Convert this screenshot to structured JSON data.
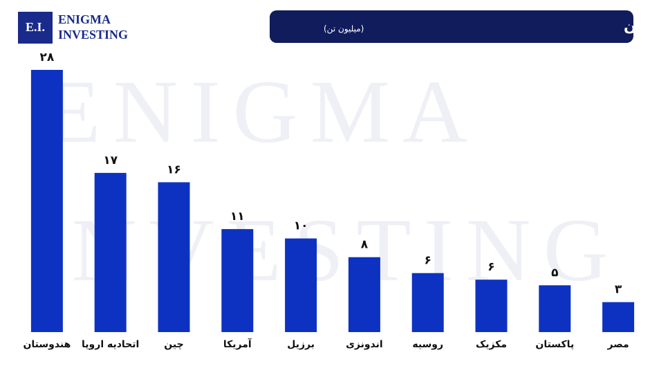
{
  "chart_data": {
    "type": "bar",
    "title": "بزرگ‌ترین مصرف‌کنندگان شکر در جهان",
    "subtitle": "(میلیون تن)",
    "logo": {
      "mark": "E.I.",
      "name_1": "Enigma",
      "name_2": "Investing"
    },
    "watermark": [
      "ENIGMA",
      "INVESTING"
    ],
    "categories": [
      "هندوستان",
      "اتحادیه اروپا",
      "چین",
      "آمریکا",
      "برزیل",
      "اندونزی",
      "روسیه",
      "مکزیک",
      "پاکستان",
      "مصر"
    ],
    "values": [
      28,
      17,
      16,
      11,
      10,
      8,
      6.3,
      5.6,
      5,
      3.2
    ],
    "value_labels": [
      "۲۸",
      "۱۷",
      "۱۶",
      "۱۱",
      "۱۰",
      "۸",
      "۶",
      "۶",
      "۵",
      "۳"
    ],
    "color": "#0d32c2",
    "ylim": [
      0,
      28
    ]
  }
}
